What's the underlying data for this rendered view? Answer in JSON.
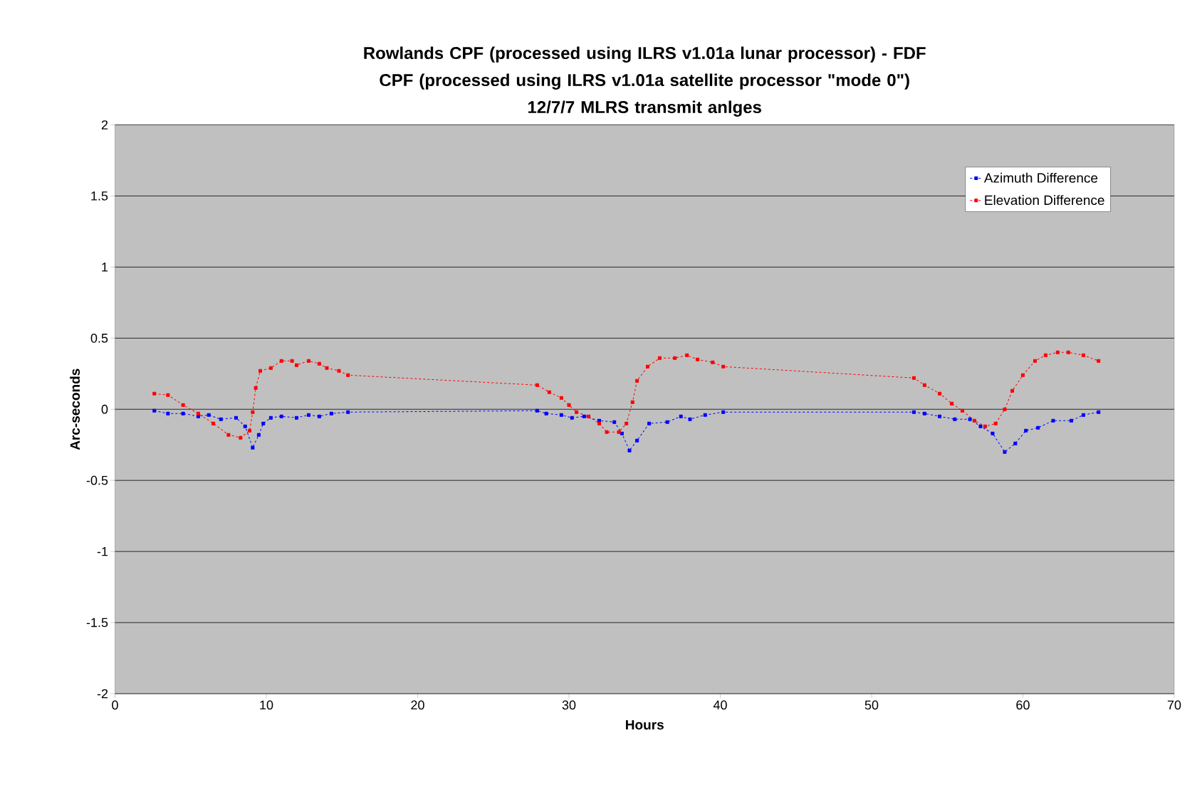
{
  "chart_data": {
    "type": "line",
    "title": "Rowlands CPF (processed using ILRS v1.01a lunar processor) - FDF CPF (processed using ILRS v1.01a satellite processor \"mode 0\")",
    "subtitle": "12/7/7 MLRS transmit anlges",
    "xlabel": "Hours",
    "ylabel": "Arc-seconds",
    "series": [
      {
        "name": "Azimuth Difference",
        "color": "#0000ff",
        "x": [
          2.6,
          3.5,
          4.5,
          5.5,
          6.2,
          7,
          8,
          8.6,
          9.1,
          9.5,
          9.8,
          10.3,
          11,
          12,
          12.8,
          13.5,
          14.3,
          15.4,
          27.9,
          28.5,
          29.5,
          30.2,
          31,
          32,
          33,
          33.5,
          34,
          34.5,
          35.3,
          36.5,
          37.4,
          38,
          39,
          40.2,
          52.8,
          53.5,
          54.5,
          55.5,
          56.5,
          57.2,
          58,
          58.8,
          59.5,
          60.2,
          61,
          62,
          63.2,
          64,
          65
        ],
        "values": [
          -0.01,
          -0.03,
          -0.03,
          -0.05,
          -0.04,
          -0.07,
          -0.06,
          -0.12,
          -0.27,
          -0.18,
          -0.1,
          -0.06,
          -0.05,
          -0.06,
          -0.04,
          -0.05,
          -0.03,
          -0.02,
          -0.01,
          -0.03,
          -0.04,
          -0.06,
          -0.05,
          -0.08,
          -0.09,
          -0.17,
          -0.29,
          -0.22,
          -0.1,
          -0.09,
          -0.05,
          -0.07,
          -0.04,
          -0.02,
          -0.02,
          -0.03,
          -0.05,
          -0.07,
          -0.07,
          -0.12,
          -0.17,
          -0.3,
          -0.24,
          -0.15,
          -0.13,
          -0.08,
          -0.08,
          -0.04,
          -0.02
        ]
      },
      {
        "name": "Elevation Difference",
        "color": "#ff0000",
        "x": [
          2.6,
          3.5,
          4.5,
          5.5,
          6.5,
          7.5,
          8.3,
          8.9,
          9.1,
          9.3,
          9.6,
          10.3,
          11,
          11.7,
          12,
          12.8,
          13.5,
          14,
          14.8,
          15.4,
          27.9,
          28.7,
          29.5,
          30,
          30.5,
          31.3,
          32,
          32.5,
          33.3,
          33.8,
          34.2,
          34.5,
          35.2,
          36,
          37,
          37.8,
          38.5,
          39.5,
          40.2,
          52.8,
          53.5,
          54.5,
          55.3,
          56,
          56.8,
          57.5,
          58.2,
          58.8,
          59.3,
          60,
          60.8,
          61.5,
          62.3,
          63,
          64,
          65
        ],
        "values": [
          0.11,
          0.1,
          0.03,
          -0.03,
          -0.1,
          -0.18,
          -0.2,
          -0.15,
          -0.02,
          0.15,
          0.27,
          0.29,
          0.34,
          0.34,
          0.31,
          0.34,
          0.32,
          0.29,
          0.27,
          0.24,
          0.17,
          0.12,
          0.08,
          0.03,
          -0.02,
          -0.05,
          -0.1,
          -0.16,
          -0.16,
          -0.1,
          0.05,
          0.2,
          0.3,
          0.36,
          0.36,
          0.38,
          0.35,
          0.33,
          0.3,
          0.22,
          0.17,
          0.11,
          0.04,
          -0.01,
          -0.08,
          -0.12,
          -0.1,
          0,
          0.13,
          0.24,
          0.34,
          0.38,
          0.4,
          0.4,
          0.38,
          0.34
        ]
      }
    ],
    "xlim": [
      0,
      70
    ],
    "xticks": [
      0,
      10,
      20,
      30,
      40,
      50,
      60,
      70
    ],
    "ylim": [
      -2,
      2
    ],
    "yticks": [
      -2,
      -1.5,
      -1,
      -0.5,
      0,
      0.5,
      1,
      1.5,
      2
    ],
    "grid": "y",
    "legend": "top right",
    "marker": "square",
    "line_style": "dashed"
  }
}
